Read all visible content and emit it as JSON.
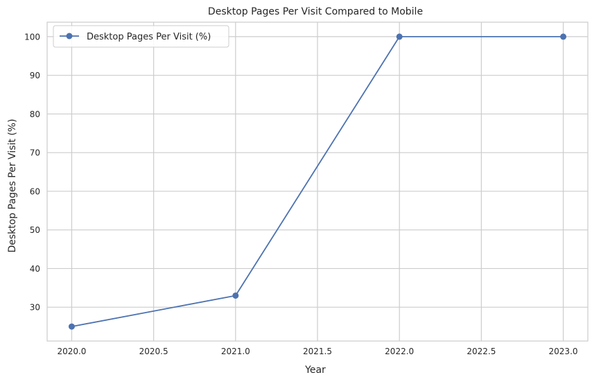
{
  "chart_data": {
    "type": "line",
    "title": "Desktop Pages Per Visit Compared to Mobile",
    "xlabel": "Year",
    "ylabel": "Desktop Pages Per Visit (%)",
    "x": [
      2020,
      2021,
      2022,
      2023
    ],
    "series": [
      {
        "name": "Desktop Pages Per Visit (%)",
        "values": [
          25,
          33,
          100,
          100
        ],
        "color": "#4c72b0",
        "marker": "circle"
      }
    ],
    "xticks": [
      "2020.0",
      "2020.5",
      "2021.0",
      "2021.5",
      "2022.0",
      "2022.5",
      "2023.0"
    ],
    "yticks": [
      "30",
      "40",
      "50",
      "60",
      "70",
      "80",
      "90",
      "100"
    ],
    "xlim": [
      2019.85,
      2023.15
    ],
    "ylim": [
      21.25,
      103.75
    ],
    "grid": true,
    "legend_position": "top-left"
  }
}
